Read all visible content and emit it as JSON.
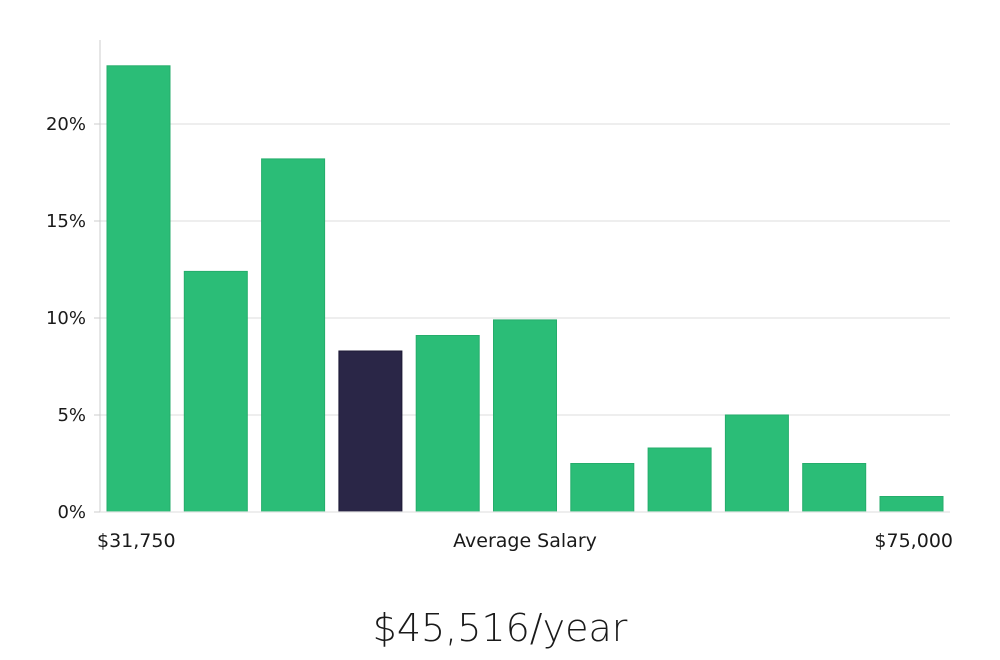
{
  "chart_data": {
    "type": "bar",
    "title": "",
    "xlabel": "Average Salary",
    "ylabel": "",
    "x_range_labels": {
      "min": "$31,750",
      "max": "$75,000"
    },
    "ylim": [
      0,
      25
    ],
    "y_ticks": [
      0,
      5,
      10,
      15,
      20
    ],
    "y_tick_format": "%",
    "values": [
      23.0,
      12.4,
      18.2,
      8.3,
      9.1,
      9.9,
      2.5,
      3.3,
      5.0,
      2.5,
      0.8
    ],
    "highlight_index": 3,
    "grid": true
  },
  "colors": {
    "bar": "#2bbd77",
    "highlight": "#2a2647",
    "grid": "#e3e3e3",
    "axis": "#cccccc",
    "text": "#1a1a1a"
  },
  "headline": "$45,516/year"
}
